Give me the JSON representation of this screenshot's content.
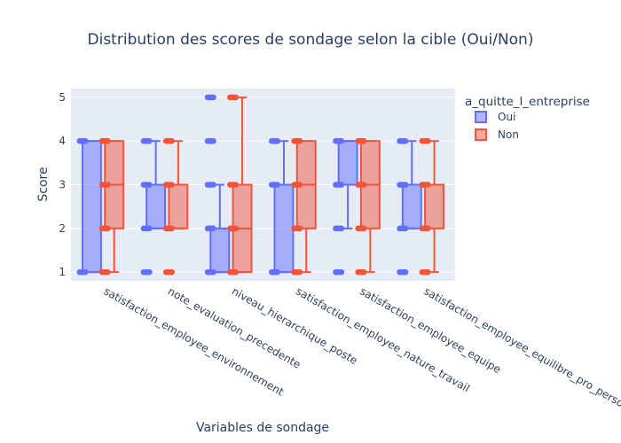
{
  "chart_data": {
    "type": "box",
    "title": "Distribution des scores de sondage selon la cible (Oui/Non)",
    "xlabel": "Variables de sondage",
    "ylabel": "Score",
    "ylim": [
      0.8,
      5.2
    ],
    "yticks": [
      1,
      2,
      3,
      4,
      5
    ],
    "legend": {
      "title": "a_quitte_l_entreprise",
      "position": "top-right"
    },
    "categories": [
      "satisfaction_employee_environnement",
      "note_evaluation_precedente",
      "niveau_hierarchique_poste",
      "satisfaction_employee_nature_travail",
      "satisfaction_employee_equipe",
      "satisfaction_employee_equilibre_pro_perso"
    ],
    "series": [
      {
        "name": "Oui",
        "color": "#636efa",
        "boxes": [
          {
            "min": 1,
            "q1": 1,
            "median": 1,
            "q3": 4,
            "max": 4,
            "outliers": []
          },
          {
            "min": 2,
            "q1": 2,
            "median": 3,
            "q3": 3,
            "max": 4,
            "outliers": [
              1
            ]
          },
          {
            "min": 1,
            "q1": 1,
            "median": 1,
            "q3": 2,
            "max": 3,
            "outliers": [
              4,
              5
            ]
          },
          {
            "min": 1,
            "q1": 1,
            "median": 3,
            "q3": 3,
            "max": 4,
            "outliers": []
          },
          {
            "min": 2,
            "q1": 3,
            "median": 3,
            "q3": 4,
            "max": 4,
            "outliers": [
              1
            ]
          },
          {
            "min": 2,
            "q1": 2,
            "median": 3,
            "q3": 3,
            "max": 4,
            "outliers": [
              1
            ]
          }
        ]
      },
      {
        "name": "Non",
        "color": "#ef553b",
        "boxes": [
          {
            "min": 1,
            "q1": 2,
            "median": 3,
            "q3": 4,
            "max": 4,
            "outliers": []
          },
          {
            "min": 2,
            "q1": 2,
            "median": 3,
            "q3": 3,
            "max": 4,
            "outliers": [
              1
            ]
          },
          {
            "min": 1,
            "q1": 1,
            "median": 2,
            "q3": 3,
            "max": 5,
            "outliers": []
          },
          {
            "min": 1,
            "q1": 2,
            "median": 3,
            "q3": 4,
            "max": 4,
            "outliers": []
          },
          {
            "min": 1,
            "q1": 2,
            "median": 3,
            "q3": 4,
            "max": 4,
            "outliers": [
              1
            ]
          },
          {
            "min": 1,
            "q1": 2,
            "median": 3,
            "q3": 3,
            "max": 4,
            "outliers": []
          }
        ]
      }
    ]
  }
}
